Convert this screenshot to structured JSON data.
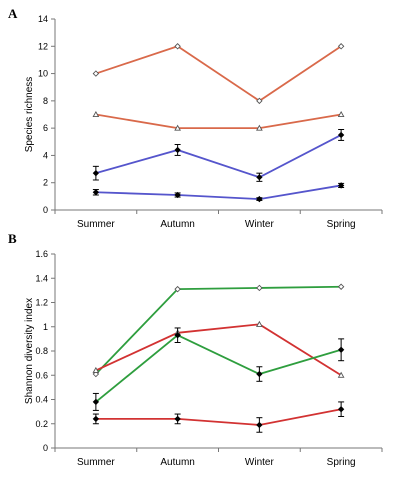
{
  "chart_data": [
    {
      "type": "line",
      "panel_label": "A",
      "categories": [
        "Summer",
        "Autumn",
        "Winter",
        "Spring"
      ],
      "ylabel": "Species richness",
      "ylim": [
        0,
        14
      ],
      "yticks": [
        "0",
        "2",
        "4",
        "6",
        "8",
        "10",
        "12",
        "14"
      ],
      "grid": false,
      "series": [
        {
          "color": "#d9694a",
          "marker": "open-diamond",
          "values": [
            10,
            12,
            8,
            12
          ]
        },
        {
          "color": "#d9694a",
          "marker": "open-triangle",
          "values": [
            7,
            6,
            6,
            7
          ]
        },
        {
          "color": "#5555cc",
          "marker": "filled-diamond",
          "values": [
            2.7,
            4.4,
            2.4,
            5.5
          ],
          "errors": [
            0.5,
            0.4,
            0.3,
            0.4
          ]
        },
        {
          "color": "#5555cc",
          "marker": "filled-diamond",
          "values": [
            1.3,
            1.1,
            0.8,
            1.8
          ],
          "errors": [
            0.2,
            0.15,
            0.1,
            0.15
          ]
        }
      ]
    },
    {
      "type": "line",
      "panel_label": "B",
      "categories": [
        "Summer",
        "Autumn",
        "Winter",
        "Spring"
      ],
      "ylabel": "Shannon diversity index",
      "ylim": [
        0,
        1.6
      ],
      "yticks": [
        "0",
        "0.2",
        "0.4",
        "0.6",
        "0.8",
        "1",
        "1.2",
        "1.4",
        "1.6"
      ],
      "grid": false,
      "series": [
        {
          "color": "#2e9e3e",
          "marker": "open-diamond",
          "values": [
            0.61,
            1.31,
            1.32,
            1.33
          ]
        },
        {
          "color": "#d23232",
          "marker": "open-triangle",
          "values": [
            0.64,
            0.95,
            1.02,
            0.6
          ]
        },
        {
          "color": "#2e9e3e",
          "marker": "filled-diamond",
          "values": [
            0.38,
            0.93,
            0.61,
            0.81
          ],
          "errors": [
            0.07,
            0.06,
            0.06,
            0.09
          ]
        },
        {
          "color": "#d23232",
          "marker": "filled-diamond",
          "values": [
            0.24,
            0.24,
            0.19,
            0.32
          ],
          "errors": [
            0.04,
            0.04,
            0.06,
            0.06
          ]
        }
      ]
    }
  ]
}
